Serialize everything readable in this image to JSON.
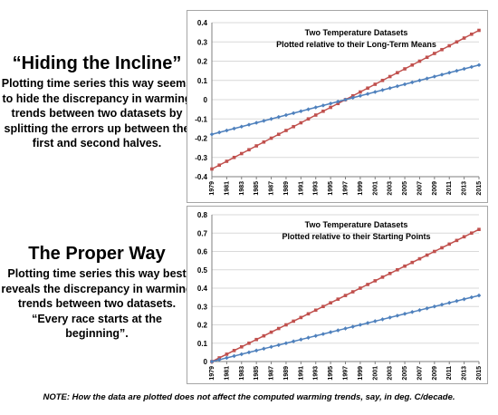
{
  "captions": {
    "top_title": "“Hiding the Incline”",
    "top_text": "Plotting time series this way seems to hide the discrepancy in warming trends between two datasets by splitting the errors up between the first and second halves.",
    "bottom_title": "The Proper Way",
    "bottom_text": "Plotting time series this way best reveals the discrepancy in warming trends between two datasets. “Every race starts at the beginning”."
  },
  "note": "NOTE: How the data are plotted does not affect the computed warming trends, say, in deg. C/decade.",
  "colors": {
    "red": "#c0504d",
    "blue": "#4f81bd",
    "grid": "#d9d9d9"
  },
  "chart_data": [
    {
      "type": "line",
      "title": "Two Temperature Datasets",
      "subtitle": "Plotted relative to their Long-Term Means",
      "xlabel": "",
      "ylabel": "",
      "x_start": 1979,
      "x_end": 2015,
      "x_ticks": [
        "1979",
        "1981",
        "1983",
        "1985",
        "1987",
        "1989",
        "1991",
        "1993",
        "1995",
        "1997",
        "1999",
        "2001",
        "2003",
        "2005",
        "2007",
        "2009",
        "2011",
        "2013",
        "2015"
      ],
      "ylim": [
        -0.4,
        0.4
      ],
      "y_ticks": [
        -0.4,
        -0.3,
        -0.2,
        -0.1,
        0,
        0.1,
        0.2,
        0.3,
        0.4
      ],
      "grid": true,
      "series": [
        {
          "color": "#c0504d",
          "marker": "square",
          "start": -0.36,
          "end": 0.36
        },
        {
          "color": "#4f81bd",
          "marker": "diamond",
          "start": -0.18,
          "end": 0.18
        }
      ]
    },
    {
      "type": "line",
      "title": "Two Temperature Datasets",
      "subtitle": "Plotted relative to their Starting Points",
      "xlabel": "",
      "ylabel": "",
      "x_start": 1979,
      "x_end": 2015,
      "x_ticks": [
        "1979",
        "1981",
        "1983",
        "1985",
        "1987",
        "1989",
        "1991",
        "1993",
        "1995",
        "1997",
        "1999",
        "2001",
        "2003",
        "2005",
        "2007",
        "2009",
        "2011",
        "2013",
        "2015"
      ],
      "ylim": [
        0,
        0.8
      ],
      "y_ticks": [
        0,
        0.1,
        0.2,
        0.3,
        0.4,
        0.5,
        0.6,
        0.7,
        0.8
      ],
      "grid": true,
      "series": [
        {
          "color": "#c0504d",
          "marker": "square",
          "start": 0,
          "end": 0.72
        },
        {
          "color": "#4f81bd",
          "marker": "diamond",
          "start": 0,
          "end": 0.36
        }
      ]
    }
  ]
}
